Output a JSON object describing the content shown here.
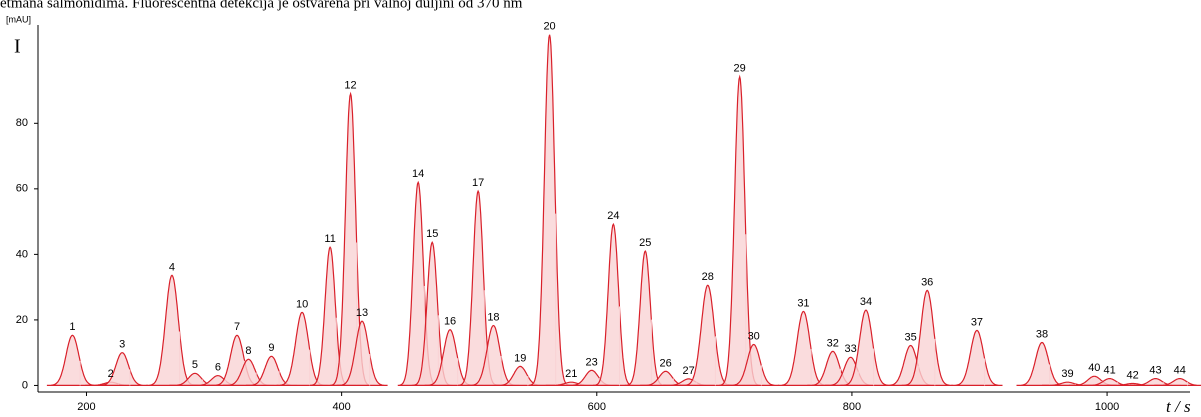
{
  "chart_data": {
    "type": "chromatogram",
    "title": "etmana salmonidima. Fluorescentna detekcija je ostvarena pri valnoj duljini od 370 nm",
    "y_unit": "[mAU]",
    "y_label": "I",
    "x_label": "t / s",
    "color": "#d9202a",
    "fill": "#f9d3d5",
    "xlim": [
      162,
      1065
    ],
    "ylim": [
      -2,
      110
    ],
    "xticks": [
      200,
      400,
      600,
      800,
      1000
    ],
    "yticks": [
      0,
      20,
      40,
      60,
      80
    ],
    "peak_labels": [
      "1",
      "2",
      "3",
      "4",
      "5",
      "6",
      "7",
      "8",
      "9",
      "10",
      "11",
      "12",
      "13",
      "14",
      "15",
      "16",
      "17",
      "18",
      "19",
      "20",
      "21",
      "23",
      "24",
      "25",
      "26",
      "27",
      "28",
      "29",
      "30",
      "31",
      "32",
      "33",
      "34",
      "35",
      "36",
      "37",
      "38",
      "39",
      "40",
      "41",
      "42",
      "43",
      "44"
    ],
    "x": [
      189,
      219,
      228,
      267,
      285,
      303,
      318,
      327,
      345,
      369,
      391,
      407,
      416,
      460,
      471,
      485,
      507,
      519,
      540,
      563,
      580,
      596,
      613,
      638,
      654,
      672,
      687,
      712,
      723,
      762,
      785,
      799,
      811,
      846,
      859,
      898,
      949,
      969,
      990,
      1002,
      1020,
      1038,
      1057
    ],
    "values": [
      15.3,
      1,
      10,
      33.6,
      3.7,
      3,
      15.3,
      8,
      8.9,
      22.3,
      42.2,
      89,
      19.6,
      62,
      43.7,
      17,
      59.3,
      18.3,
      5.8,
      107,
      1,
      4.6,
      49.2,
      41,
      4.3,
      2,
      30.6,
      94.2,
      12.5,
      22.6,
      10.4,
      8.6,
      23,
      12.2,
      29,
      16.8,
      13.1,
      1,
      2.8,
      2.1,
      0.6,
      2.1,
      2.1
    ]
  }
}
